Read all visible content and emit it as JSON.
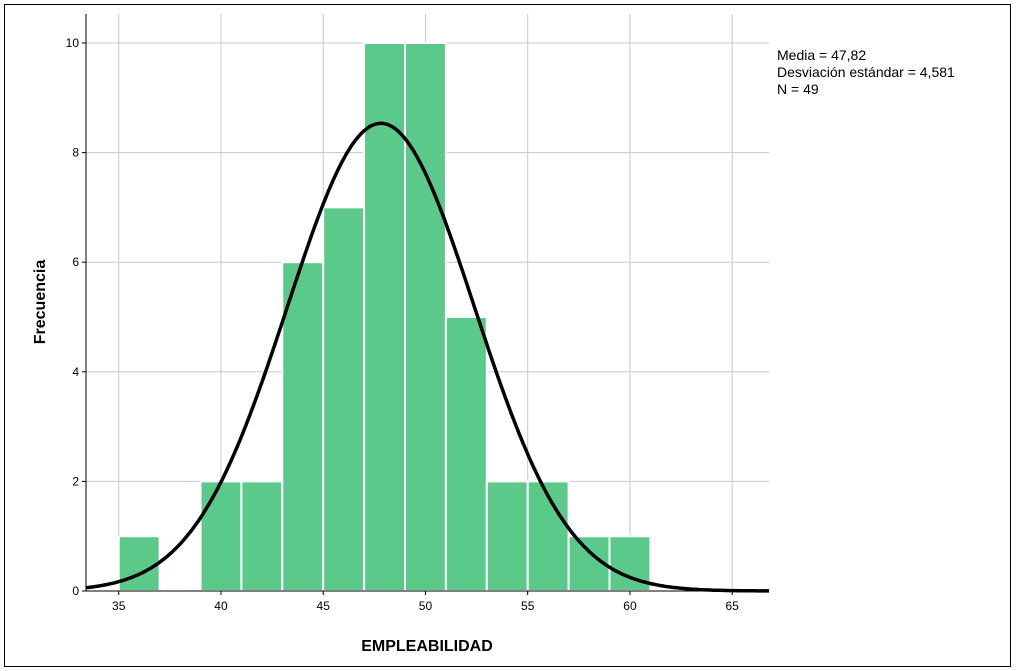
{
  "chart_data": {
    "type": "bar",
    "subtype": "histogram",
    "xlabel": "EMPLEABILIDAD",
    "ylabel": "Frecuencia",
    "xlim": [
      33.4,
      66.8
    ],
    "ylim": [
      0,
      10
    ],
    "xticks": [
      35,
      40,
      45,
      50,
      55,
      60,
      65
    ],
    "yticks": [
      0,
      2,
      4,
      6,
      8,
      10
    ],
    "bin_width": 2,
    "bins": [
      {
        "start": 35,
        "end": 37,
        "count": 1
      },
      {
        "start": 37,
        "end": 39,
        "count": 0
      },
      {
        "start": 39,
        "end": 41,
        "count": 2
      },
      {
        "start": 41,
        "end": 43,
        "count": 2
      },
      {
        "start": 43,
        "end": 45,
        "count": 6
      },
      {
        "start": 45,
        "end": 47,
        "count": 7
      },
      {
        "start": 47,
        "end": 49,
        "count": 10
      },
      {
        "start": 49,
        "end": 51,
        "count": 10
      },
      {
        "start": 51,
        "end": 53,
        "count": 5
      },
      {
        "start": 53,
        "end": 55,
        "count": 2
      },
      {
        "start": 55,
        "end": 57,
        "count": 2
      },
      {
        "start": 57,
        "end": 59,
        "count": 1
      },
      {
        "start": 59,
        "end": 61,
        "count": 1
      }
    ],
    "normal_curve": {
      "mean": 47.82,
      "sd": 4.581,
      "n": 49
    },
    "grid": true,
    "colors": {
      "bar": "#5bc98a",
      "bar_edge": "#ffffff",
      "curve": "#000000",
      "grid": "#c8c8c8"
    },
    "stats": [
      "Media = 47,82",
      "Desviación estándar = 4,581",
      "N = 49"
    ]
  }
}
